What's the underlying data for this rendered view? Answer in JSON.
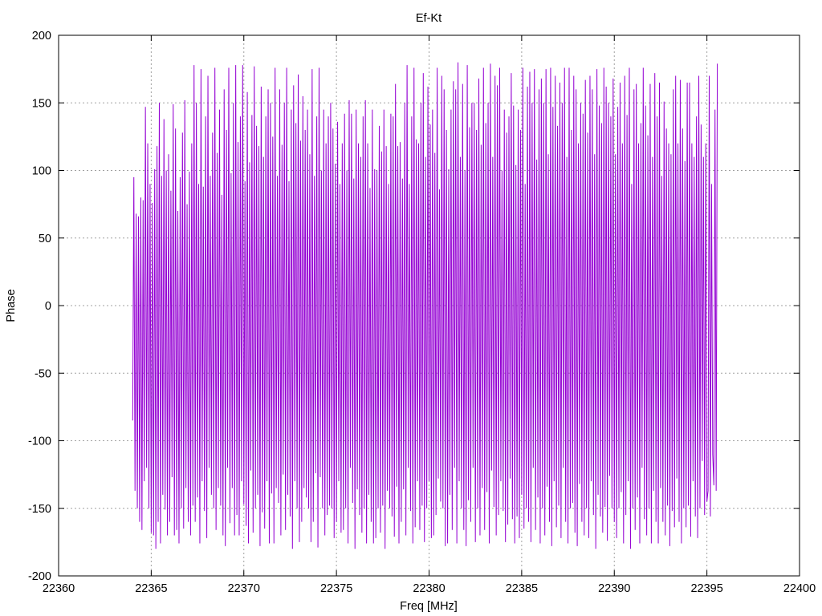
{
  "chart_data": {
    "type": "line",
    "title": "Ef-Kt",
    "xlabel": "Freq [MHz]",
    "ylabel": "Phase",
    "xlim": [
      22360,
      22400
    ],
    "ylim": [
      -200,
      200
    ],
    "x_ticks": [
      22360,
      22365,
      22370,
      22375,
      22380,
      22385,
      22390,
      22395,
      22400
    ],
    "y_ticks": [
      -200,
      -150,
      -100,
      -50,
      0,
      50,
      100,
      150,
      200
    ],
    "grid": true,
    "series": [
      {
        "color": "#9400d3",
        "x_start": 22364,
        "x_end": 22396,
        "x_step": 0.0625,
        "values": [
          -85,
          95,
          -137,
          68,
          -150,
          66,
          -160,
          80,
          -166,
          78,
          -130,
          147,
          -120,
          120,
          -150,
          90,
          -168,
          76,
          -170,
          101,
          -180,
          118,
          -160,
          150,
          -176,
          96,
          -140,
          138,
          -151,
          100,
          -170,
          112,
          -160,
          85,
          -127,
          149,
          -170,
          131,
          -166,
          70,
          -176,
          95,
          -150,
          128,
          -165,
          152,
          -135,
          75,
          -160,
          99,
          -170,
          120,
          -148,
          178,
          -160,
          150,
          -142,
          90,
          -176,
          175,
          -130,
          88,
          -152,
          140,
          -172,
          170,
          -120,
          96,
          -140,
          128,
          -150,
          176,
          -166,
          113,
          -135,
          145,
          -148,
          82,
          -170,
          160,
          -178,
          130,
          -120,
          176,
          -161,
          98,
          -135,
          150,
          -170,
          178,
          -155,
          121,
          -170,
          140,
          -130,
          178,
          -147,
          92,
          -163,
          158,
          -176,
          106,
          -122,
          141,
          -168,
          177,
          -150,
          133,
          -140,
          118,
          -178,
          162,
          -153,
          110,
          -165,
          140,
          -130,
          160,
          -176,
          150,
          -139,
          125,
          -176,
          176,
          -135,
          96,
          -146,
          160,
          -170,
          119,
          -125,
          150,
          -166,
          176,
          -140,
          92,
          -156,
          145,
          -180,
          163,
          -130,
          135,
          -150,
          171,
          -175,
          122,
          -160,
          155,
          -135,
          130,
          -142,
          145,
          -150,
          112,
          -175,
          175,
          -160,
          96,
          -124,
          140,
          -179,
          176,
          -127,
          100,
          -150,
          145,
          -170,
          120,
          -155,
          140,
          -148,
          150,
          -150,
          131,
          -172,
          105,
          -160,
          136,
          -130,
          90,
          -168,
          120,
          -166,
          142,
          -150,
          100,
          -176,
          152,
          -120,
          142,
          -146,
          94,
          -180,
          145,
          -136,
          120,
          -155,
          110,
          -168,
          140,
          -150,
          152,
          -176,
          120,
          -140,
          87,
          -160,
          145,
          -176,
          101,
          -172,
          100,
          -150,
          133,
          -168,
          114,
          -148,
          145,
          -180,
          118,
          -137,
          90,
          -150,
          142,
          -156,
          140,
          -171,
          164,
          -134,
          118,
          -176,
          121,
          -160,
          94,
          -136,
          150,
          -170,
          178,
          -120,
          90,
          -152,
          140,
          -176,
          176,
          -164,
          123,
          -130,
          120,
          -166,
          150,
          -148,
          172,
          -175,
          110,
          -150,
          162,
          -130,
          134,
          -172,
          145,
          -170,
          113,
          -155,
          176,
          -128,
          86,
          -145,
          170,
          -150,
          160,
          -178,
          130,
          -176,
          101,
          -140,
          145,
          -166,
          166,
          -120,
          160,
          -176,
          180,
          -130,
          110,
          -150,
          164,
          -166,
          100,
          -178,
          178,
          -144,
          132,
          -160,
          150,
          -120,
          150,
          -175,
          130,
          -150,
          168,
          -170,
          119,
          -135,
          176,
          -166,
          135,
          -138,
          150,
          -176,
          179,
          -122,
          110,
          -149,
          170,
          -170,
          163,
          -155,
          176,
          -130,
          100,
          -152,
          145,
          -175,
          128,
          -162,
          140,
          -128,
          172,
          -158,
          148,
          -176,
          104,
          -156,
          145,
          -172,
          130,
          -140,
          176,
          -165,
          90,
          -150,
          162,
          -160,
          173,
          -175,
          150,
          -120,
          175,
          -166,
          108,
          -142,
          160,
          -176,
          168,
          -150,
          150,
          -170,
          175,
          -134,
          112,
          -160,
          176,
          -178,
          147,
          -130,
          170,
          -164,
          133,
          -148,
          165,
          -172,
          150,
          -120,
          176,
          -160,
          110,
          -176,
          176,
          -150,
          130,
          -146,
          170,
          -168,
          160,
          -178,
          120,
          -132,
          150,
          -160,
          142,
          -170,
          167,
          -150,
          128,
          -172,
          170,
          -130,
          160,
          -155,
          112,
          -180,
          175,
          -140,
          148,
          -156,
          135,
          -168,
          176,
          -149,
          162,
          -174,
          150,
          -126,
          140,
          -150,
          168,
          -160,
          112,
          -172,
          147,
          -150,
          165,
          -138,
          120,
          -176,
          170,
          -155,
          141,
          -130,
          176,
          -180,
          90,
          -150,
          160,
          -166,
          164,
          -142,
          120,
          -176,
          135,
          -120,
          176,
          -158,
          148,
          -170,
          126,
          -150,
          164,
          -176,
          110,
          -137,
          172,
          -160,
          140,
          -176,
          165,
          -135,
          96,
          -160,
          151,
          -170,
          131,
          -148,
          120,
          -178,
          112,
          -152,
          160,
          -164,
          170,
          -128,
          120,
          -160,
          167,
          -176,
          131,
          -150,
          107,
          -164,
          165,
          -148,
          165,
          -171,
          120,
          -130,
          110,
          -156,
          140,
          -172,
          170,
          -150,
          134,
          -115,
          110,
          -155,
          120,
          -145,
          -137,
          170,
          -156,
          90,
          -110,
          -133,
          145,
          -137,
          179
        ]
      }
    ]
  }
}
